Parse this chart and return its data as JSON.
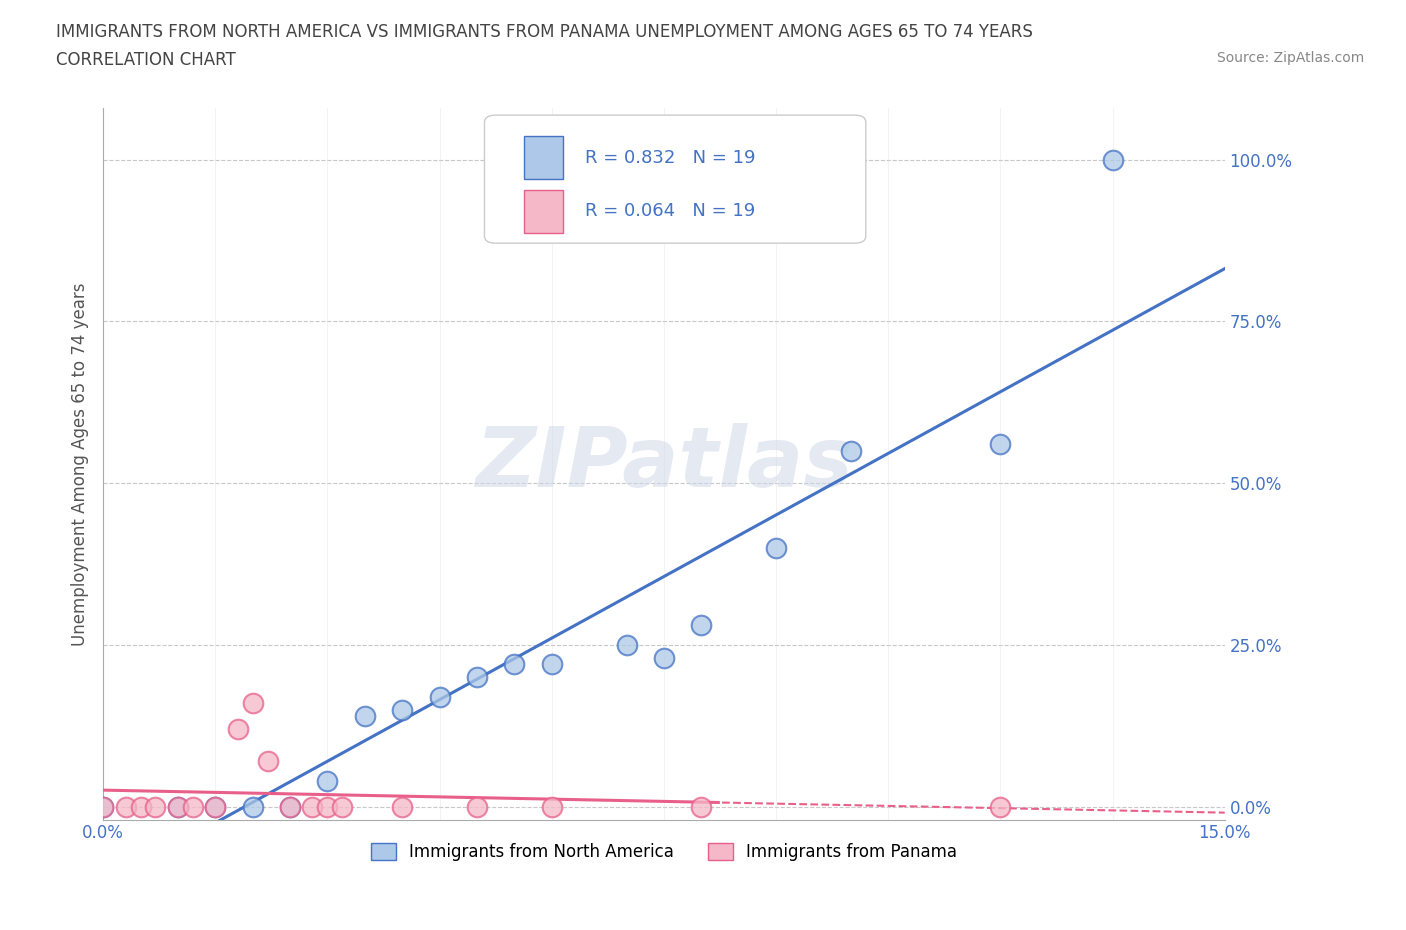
{
  "title_line1": "IMMIGRANTS FROM NORTH AMERICA VS IMMIGRANTS FROM PANAMA UNEMPLOYMENT AMONG AGES 65 TO 74 YEARS",
  "title_line2": "CORRELATION CHART",
  "source_text": "Source: ZipAtlas.com",
  "ylabel": "Unemployment Among Ages 65 to 74 years",
  "xlim": [
    0.0,
    0.15
  ],
  "ylim": [
    -0.02,
    1.08
  ],
  "ytick_values": [
    0.0,
    0.25,
    0.5,
    0.75,
    1.0
  ],
  "north_america_x": [
    0.0,
    0.01,
    0.015,
    0.02,
    0.025,
    0.03,
    0.035,
    0.04,
    0.045,
    0.05,
    0.055,
    0.06,
    0.07,
    0.075,
    0.08,
    0.09,
    0.1,
    0.12,
    0.135
  ],
  "north_america_y": [
    0.0,
    0.0,
    0.0,
    0.0,
    0.0,
    0.04,
    0.14,
    0.15,
    0.17,
    0.2,
    0.22,
    0.22,
    0.25,
    0.23,
    0.28,
    0.4,
    0.55,
    0.56,
    1.0
  ],
  "panama_x": [
    0.0,
    0.003,
    0.005,
    0.007,
    0.01,
    0.012,
    0.015,
    0.018,
    0.02,
    0.022,
    0.025,
    0.028,
    0.03,
    0.032,
    0.04,
    0.05,
    0.06,
    0.08,
    0.12
  ],
  "panama_y": [
    0.0,
    0.0,
    0.0,
    0.0,
    0.0,
    0.0,
    0.0,
    0.12,
    0.16,
    0.07,
    0.0,
    0.0,
    0.0,
    0.0,
    0.0,
    0.0,
    0.0,
    0.0,
    0.0
  ],
  "north_america_color": "#adc8e8",
  "panama_color": "#f4b8c8",
  "north_america_line_color": "#4472c4",
  "panama_line_color": "#e8608a",
  "r_north_america": "0.832",
  "r_panama": "0.064",
  "n_north_america": "19",
  "n_panama": "19",
  "watermark_text": "ZIPatlas",
  "background_color": "#ffffff",
  "grid_color": "#c8c8c8"
}
